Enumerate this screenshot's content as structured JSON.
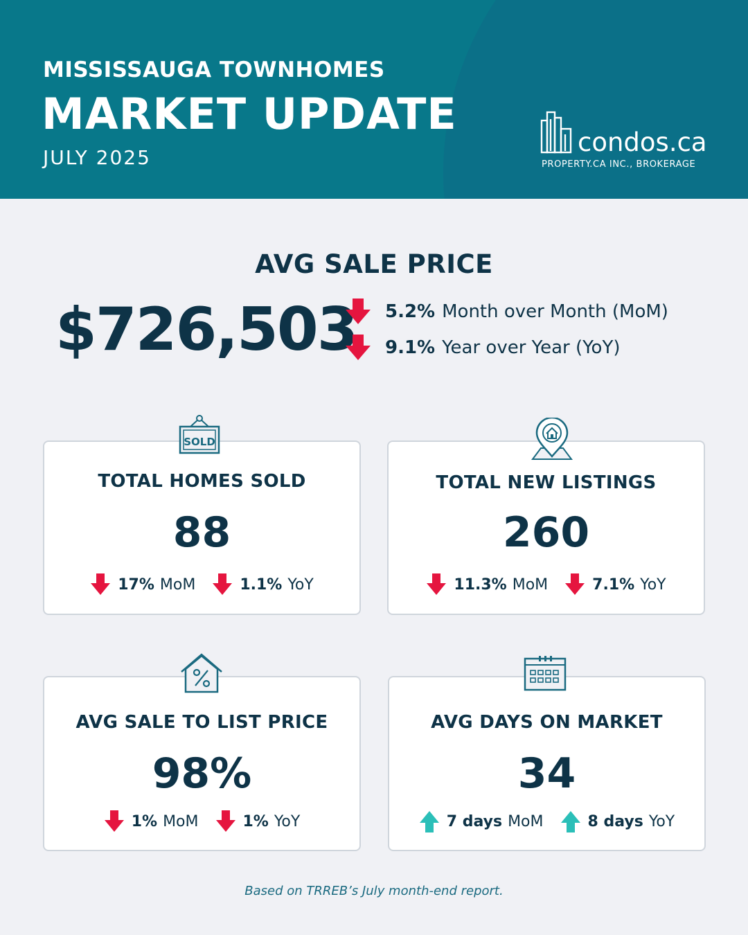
{
  "header": {
    "subtitle": "MISSISSAUGA TOWNHOMES",
    "title": "MARKET UPDATE",
    "date": "JULY 2025",
    "logo_text": "condos.ca",
    "logo_sub": "PROPERTY.CA INC., BROKERAGE",
    "logo_icon": "building-icon"
  },
  "colors": {
    "header_bg": "#08788a",
    "text_dark": "#0e3347",
    "down_arrow": "#e5153f",
    "up_arrow": "#2bbfb8",
    "background": "#f0f1f5"
  },
  "avg_price": {
    "title": "AVG SALE PRICE",
    "value": "$726,503",
    "mom_pct": "5.2%",
    "mom_label": "Month over Month (MoM)",
    "mom_direction": "down",
    "yoy_pct": "9.1%",
    "yoy_label": "Year over Year (YoY)",
    "yoy_direction": "down"
  },
  "cards": {
    "sold": {
      "icon": "sold-sign-icon",
      "label": "TOTAL HOMES SOLD",
      "value": "88",
      "mom_value": "17%",
      "mom_unit": "MoM",
      "mom_direction": "down",
      "yoy_value": "1.1%",
      "yoy_unit": "YoY",
      "yoy_direction": "down"
    },
    "listings": {
      "icon": "location-pin-house-icon",
      "label": "TOTAL NEW LISTINGS",
      "value": "260",
      "mom_value": "11.3%",
      "mom_unit": "MoM",
      "mom_direction": "down",
      "yoy_value": "7.1%",
      "yoy_unit": "YoY",
      "yoy_direction": "down"
    },
    "ratio": {
      "icon": "house-percent-icon",
      "label": "AVG SALE TO LIST PRICE",
      "value": "98%",
      "mom_value": "1%",
      "mom_unit": "MoM",
      "mom_direction": "down",
      "yoy_value": "1%",
      "yoy_unit": "YoY",
      "yoy_direction": "down"
    },
    "dom": {
      "icon": "calendar-icon",
      "label": "AVG DAYS ON MARKET",
      "value": "34",
      "mom_value": "7 days",
      "mom_unit": "MoM",
      "mom_direction": "up",
      "yoy_value": "8 days",
      "yoy_unit": "YoY",
      "yoy_direction": "up"
    }
  },
  "footer": "Based on TRREB’s July month-end report."
}
